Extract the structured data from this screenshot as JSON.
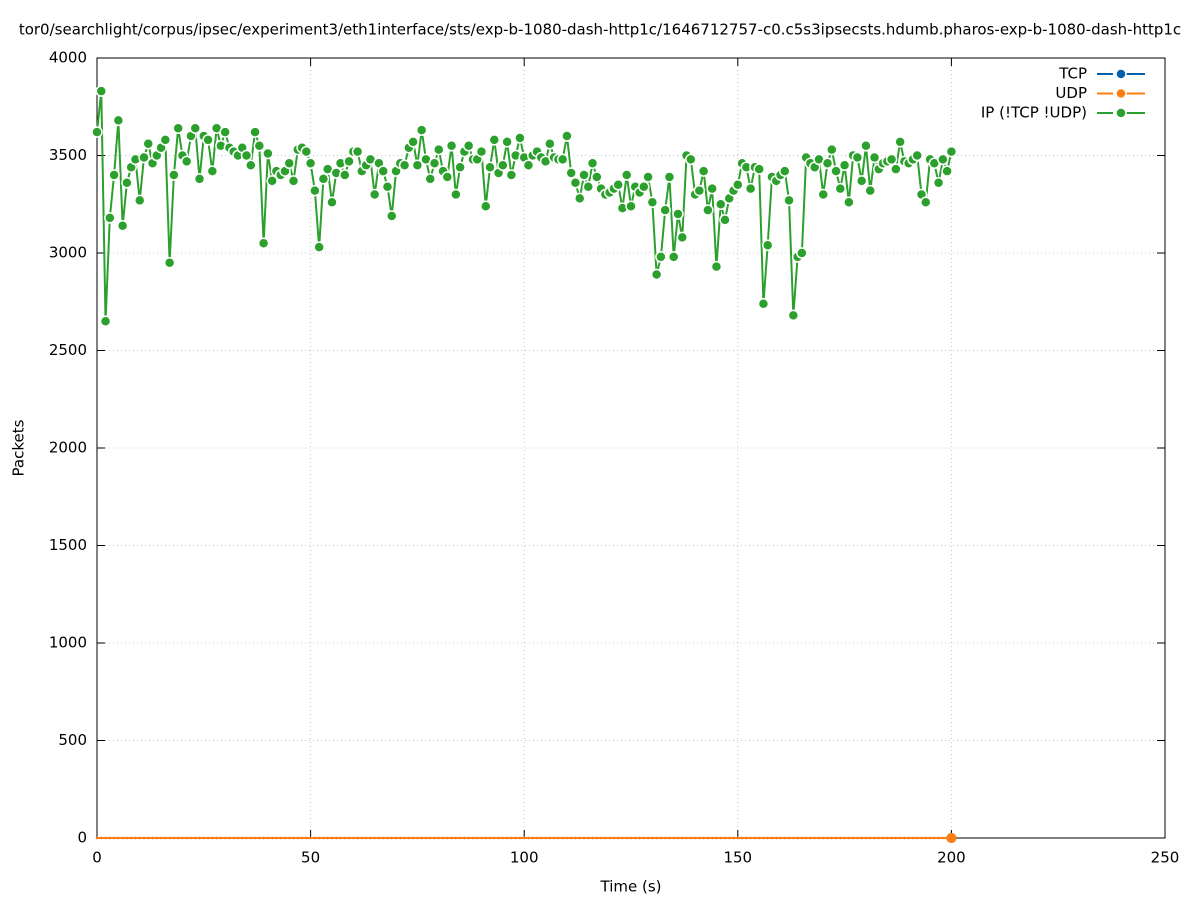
{
  "chart_data": {
    "type": "line",
    "title": "tor0/searchlight/corpus/ipsec/experiment3/eth1interface/sts/exp-b-1080-dash-http1c/1646712757-c0.c5s3ipsecsts.hdumb.pharos-exp-b-1080-dash-http1c",
    "xlabel": "Time (s)",
    "ylabel": "Packets",
    "xlim": [
      0,
      250
    ],
    "xticks": [
      0,
      50,
      100,
      150,
      200,
      250
    ],
    "ylim": [
      0,
      4000
    ],
    "yticks": [
      0,
      500,
      1000,
      1500,
      2000,
      2500,
      3000,
      3500,
      4000
    ],
    "grid": true,
    "legend": "top-right",
    "x": [
      0,
      1,
      2,
      3,
      4,
      5,
      6,
      7,
      8,
      9,
      10,
      11,
      12,
      13,
      14,
      15,
      16,
      17,
      18,
      19,
      20,
      21,
      22,
      23,
      24,
      25,
      26,
      27,
      28,
      29,
      30,
      31,
      32,
      33,
      34,
      35,
      36,
      37,
      38,
      39,
      40,
      41,
      42,
      43,
      44,
      45,
      46,
      47,
      48,
      49,
      50,
      51,
      52,
      53,
      54,
      55,
      56,
      57,
      58,
      59,
      60,
      61,
      62,
      63,
      64,
      65,
      66,
      67,
      68,
      69,
      70,
      71,
      72,
      73,
      74,
      75,
      76,
      77,
      78,
      79,
      80,
      81,
      82,
      83,
      84,
      85,
      86,
      87,
      88,
      89,
      90,
      91,
      92,
      93,
      94,
      95,
      96,
      97,
      98,
      99,
      100,
      101,
      102,
      103,
      104,
      105,
      106,
      107,
      108,
      109,
      110,
      111,
      112,
      113,
      114,
      115,
      116,
      117,
      118,
      119,
      120,
      121,
      122,
      123,
      124,
      125,
      126,
      127,
      128,
      129,
      130,
      131,
      132,
      133,
      134,
      135,
      136,
      137,
      138,
      139,
      140,
      141,
      142,
      143,
      144,
      145,
      146,
      147,
      148,
      149,
      150,
      151,
      152,
      153,
      154,
      155,
      156,
      157,
      158,
      159,
      160,
      161,
      162,
      163,
      164,
      165,
      166,
      167,
      168,
      169,
      170,
      171,
      172,
      173,
      174,
      175,
      176,
      177,
      178,
      179,
      180,
      181,
      182,
      183,
      184,
      185,
      186,
      187,
      188,
      189,
      190,
      191,
      192,
      193,
      194,
      195,
      196,
      197,
      198,
      199,
      200
    ],
    "series": [
      {
        "name": "TCP",
        "color": "#0060ad",
        "values": [
          0,
          0,
          0,
          0,
          0,
          0,
          0,
          0,
          0,
          0,
          0,
          0,
          0,
          0,
          0,
          0,
          0,
          0,
          0,
          0,
          0,
          0,
          0,
          0,
          0,
          0,
          0,
          0,
          0,
          0,
          0,
          0,
          0,
          0,
          0,
          0,
          0,
          0,
          0,
          0,
          0,
          0,
          0,
          0,
          0,
          0,
          0,
          0,
          0,
          0,
          0,
          0,
          0,
          0,
          0,
          0,
          0,
          0,
          0,
          0,
          0,
          0,
          0,
          0,
          0,
          0,
          0,
          0,
          0,
          0,
          0,
          0,
          0,
          0,
          0,
          0,
          0,
          0,
          0,
          0,
          0,
          0,
          0,
          0,
          0,
          0,
          0,
          0,
          0,
          0,
          0,
          0,
          0,
          0,
          0,
          0,
          0,
          0,
          0,
          0,
          0,
          0,
          0,
          0,
          0,
          0,
          0,
          0,
          0,
          0,
          0,
          0,
          0,
          0,
          0,
          0,
          0,
          0,
          0,
          0,
          0,
          0,
          0,
          0,
          0,
          0,
          0,
          0,
          0,
          0,
          0,
          0,
          0,
          0,
          0,
          0,
          0,
          0,
          0,
          0,
          0,
          0,
          0,
          0,
          0,
          0,
          0,
          0,
          0,
          0,
          0,
          0,
          0,
          0,
          0,
          0,
          0,
          0,
          0,
          0,
          0,
          0,
          0,
          0,
          0,
          0,
          0,
          0,
          0,
          0,
          0,
          0,
          0,
          0,
          0,
          0,
          0,
          0,
          0,
          0,
          0,
          0,
          0,
          0,
          0,
          0,
          0,
          0,
          0,
          0,
          0,
          0,
          0,
          0,
          0,
          0,
          0,
          0,
          0,
          0,
          0
        ]
      },
      {
        "name": "UDP",
        "color": "#ff7f0e",
        "values": [
          0,
          0,
          0,
          0,
          0,
          0,
          0,
          0,
          0,
          0,
          0,
          0,
          0,
          0,
          0,
          0,
          0,
          0,
          0,
          0,
          0,
          0,
          0,
          0,
          0,
          0,
          0,
          0,
          0,
          0,
          0,
          0,
          0,
          0,
          0,
          0,
          0,
          0,
          0,
          0,
          0,
          0,
          0,
          0,
          0,
          0,
          0,
          0,
          0,
          0,
          0,
          0,
          0,
          0,
          0,
          0,
          0,
          0,
          0,
          0,
          0,
          0,
          0,
          0,
          0,
          0,
          0,
          0,
          0,
          0,
          0,
          0,
          0,
          0,
          0,
          0,
          0,
          0,
          0,
          0,
          0,
          0,
          0,
          0,
          0,
          0,
          0,
          0,
          0,
          0,
          0,
          0,
          0,
          0,
          0,
          0,
          0,
          0,
          0,
          0,
          0,
          0,
          0,
          0,
          0,
          0,
          0,
          0,
          0,
          0,
          0,
          0,
          0,
          0,
          0,
          0,
          0,
          0,
          0,
          0,
          0,
          0,
          0,
          0,
          0,
          0,
          0,
          0,
          0,
          0,
          0,
          0,
          0,
          0,
          0,
          0,
          0,
          0,
          0,
          0,
          0,
          0,
          0,
          0,
          0,
          0,
          0,
          0,
          0,
          0,
          0,
          0,
          0,
          0,
          0,
          0,
          0,
          0,
          0,
          0,
          0,
          0,
          0,
          0,
          0,
          0,
          0,
          0,
          0,
          0,
          0,
          0,
          0,
          0,
          0,
          0,
          0,
          0,
          0,
          0,
          0,
          0,
          0,
          0,
          0,
          0,
          0,
          0,
          0,
          0,
          0,
          0,
          0,
          0,
          0,
          0,
          0,
          0,
          0,
          0,
          0
        ]
      },
      {
        "name": "IP (!TCP  !UDP)",
        "color": "#2ca02c",
        "values": [
          3620,
          3830,
          2650,
          3180,
          3400,
          3680,
          3140,
          3360,
          3440,
          3480,
          3270,
          3490,
          3560,
          3460,
          3500,
          3540,
          3580,
          2950,
          3400,
          3640,
          3500,
          3470,
          3600,
          3640,
          3380,
          3600,
          3580,
          3420,
          3640,
          3550,
          3620,
          3540,
          3520,
          3500,
          3540,
          3500,
          3450,
          3620,
          3550,
          3050,
          3510,
          3370,
          3420,
          3400,
          3420,
          3460,
          3370,
          3530,
          3540,
          3520,
          3460,
          3320,
          3030,
          3380,
          3430,
          3260,
          3410,
          3460,
          3400,
          3470,
          3520,
          3520,
          3420,
          3450,
          3480,
          3300,
          3460,
          3420,
          3340,
          3190,
          3420,
          3460,
          3450,
          3540,
          3570,
          3450,
          3630,
          3480,
          3380,
          3460,
          3530,
          3420,
          3390,
          3550,
          3300,
          3440,
          3520,
          3550,
          3480,
          3480,
          3520,
          3240,
          3440,
          3580,
          3410,
          3450,
          3570,
          3400,
          3500,
          3590,
          3490,
          3450,
          3500,
          3520,
          3490,
          3470,
          3560,
          3490,
          3480,
          3480,
          3600,
          3410,
          3360,
          3280,
          3400,
          3340,
          3460,
          3390,
          3330,
          3300,
          3310,
          3330,
          3350,
          3230,
          3400,
          3240,
          3340,
          3310,
          3340,
          3390,
          3260,
          2890,
          2980,
          3220,
          3390,
          2980,
          3200,
          3080,
          3500,
          3480,
          3300,
          3320,
          3420,
          3220,
          3330,
          2930,
          3250,
          3170,
          3280,
          3320,
          3350,
          3460,
          3440,
          3330,
          3440,
          3430,
          2740,
          3040,
          3390,
          3370,
          3400,
          3420,
          3270,
          2680,
          2980,
          3000,
          3490,
          3460,
          3440,
          3480,
          3300,
          3460,
          3530,
          3420,
          3330,
          3450,
          3260,
          3500,
          3490,
          3370,
          3550,
          3320,
          3490,
          3430,
          3460,
          3470,
          3480,
          3430,
          3570,
          3470,
          3460,
          3480,
          3500,
          3300,
          3260,
          3480,
          3460,
          3360,
          3480,
          3420,
          3520
        ]
      }
    ]
  }
}
